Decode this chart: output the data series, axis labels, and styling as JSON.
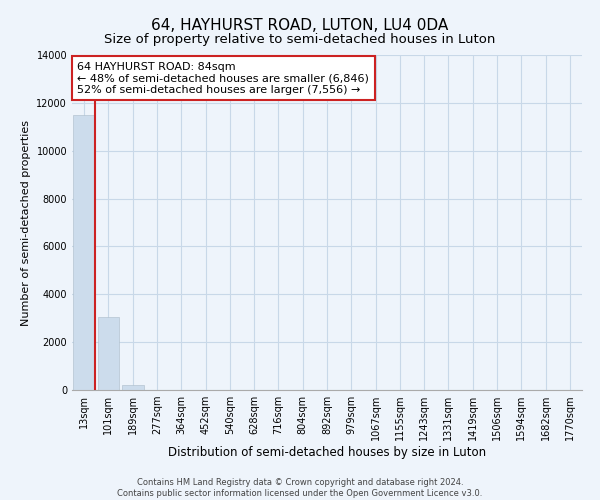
{
  "title": "64, HAYHURST ROAD, LUTON, LU4 0DA",
  "subtitle": "Size of property relative to semi-detached houses in Luton",
  "xlabel": "Distribution of semi-detached houses by size in Luton",
  "ylabel": "Number of semi-detached properties",
  "categories": [
    "13sqm",
    "101sqm",
    "189sqm",
    "277sqm",
    "364sqm",
    "452sqm",
    "540sqm",
    "628sqm",
    "716sqm",
    "804sqm",
    "892sqm",
    "979sqm",
    "1067sqm",
    "1155sqm",
    "1243sqm",
    "1331sqm",
    "1419sqm",
    "1506sqm",
    "1594sqm",
    "1682sqm",
    "1770sqm"
  ],
  "values": [
    11500,
    3050,
    200,
    0,
    0,
    0,
    0,
    0,
    0,
    0,
    0,
    0,
    0,
    0,
    0,
    0,
    0,
    0,
    0,
    0,
    0
  ],
  "bar_color_default": "#ccdcec",
  "red_line_index": 0,
  "annotation_title": "64 HAYHURST ROAD: 84sqm",
  "annotation_line1": "← 48% of semi-detached houses are smaller (6,846)",
  "annotation_line2": "52% of semi-detached houses are larger (7,556) →",
  "annotation_box_facecolor": "#ffffff",
  "annotation_box_edgecolor": "#cc2222",
  "ylim": [
    0,
    14000
  ],
  "yticks": [
    0,
    2000,
    4000,
    6000,
    8000,
    10000,
    12000,
    14000
  ],
  "footer_line1": "Contains HM Land Registry data © Crown copyright and database right 2024.",
  "footer_line2": "Contains public sector information licensed under the Open Government Licence v3.0.",
  "bg_color": "#eef4fb",
  "grid_color": "#c8d8e8",
  "title_fontsize": 11,
  "subtitle_fontsize": 9.5,
  "xlabel_fontsize": 8.5,
  "ylabel_fontsize": 8,
  "tick_fontsize": 7,
  "annotation_fontsize": 8,
  "footer_fontsize": 6
}
